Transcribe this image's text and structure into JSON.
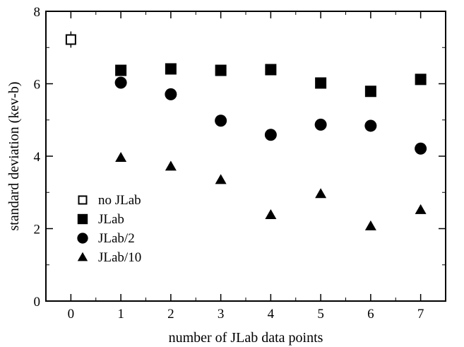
{
  "chart_data": {
    "type": "scatter",
    "title": "",
    "xlabel": "number of JLab data points",
    "ylabel": "standard deviation (kev-b)",
    "xlim": [
      -0.5,
      7.5
    ],
    "ylim": [
      0,
      8
    ],
    "xticks": [
      0,
      1,
      2,
      3,
      4,
      5,
      6,
      7
    ],
    "yticks": [
      0,
      2,
      4,
      6,
      8
    ],
    "grid": false,
    "legend_position": "lower-left",
    "series": [
      {
        "name": "no JLab",
        "marker": "open-square",
        "color": "#000000",
        "x": [
          0
        ],
        "y": [
          7.22
        ]
      },
      {
        "name": "JLab",
        "marker": "square",
        "color": "#000000",
        "x": [
          1,
          2,
          3,
          4,
          5,
          6,
          7
        ],
        "y": [
          6.37,
          6.41,
          6.37,
          6.39,
          6.02,
          5.79,
          6.12
        ]
      },
      {
        "name": "JLab/2",
        "marker": "circle",
        "color": "#000000",
        "x": [
          1,
          2,
          3,
          4,
          5,
          6,
          7
        ],
        "y": [
          6.03,
          5.71,
          4.98,
          4.59,
          4.87,
          4.84,
          4.21
        ]
      },
      {
        "name": "JLab/10",
        "marker": "triangle",
        "color": "#000000",
        "x": [
          1,
          2,
          3,
          4,
          5,
          6,
          7
        ],
        "y": [
          3.96,
          3.72,
          3.35,
          2.38,
          2.96,
          2.07,
          2.52
        ]
      }
    ]
  }
}
